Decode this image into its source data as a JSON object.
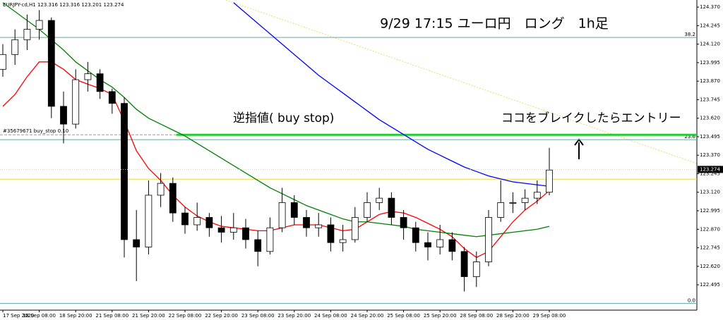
{
  "chart_data": {
    "type": "candlestick",
    "header": "EURJPY-cd,H1 123.316 123.316 123.201 123.274",
    "title": "9/29 17:15 ユーロ円　ロング　1h足",
    "annotations": [
      "逆指値( buy stop)",
      "ココをブレイクしたらエントリー"
    ],
    "categories": [
      "17 Sep 2020",
      null,
      null,
      "18 Sep 08:00",
      null,
      null,
      "18 Sep 20:00",
      null,
      null,
      "21 Sep 08:00",
      null,
      null,
      "21 Sep 20:00",
      null,
      null,
      "22 Sep 08:00",
      null,
      null,
      "22 Sep 20:00",
      null,
      null,
      "23 Sep 08:00",
      null,
      null,
      "23 Sep 20:00",
      null,
      null,
      "24 Sep 08:00",
      null,
      null,
      "24 Sep 20:00",
      null,
      null,
      "25 Sep 08:00",
      null,
      null,
      "25 Sep 20:00",
      null,
      null,
      "28 Sep 08:00",
      null,
      null,
      "28 Sep 20:00",
      null,
      null,
      "29 Sep 08:00"
    ],
    "open": [
      123.95,
      124.05,
      124.15,
      124.22,
      124.28,
      123.7,
      123.58,
      123.88,
      123.92,
      123.8,
      123.72,
      122.8,
      122.75,
      123.1,
      123.18,
      122.98,
      122.9,
      122.95,
      122.88,
      122.85,
      122.88,
      122.8,
      122.72,
      122.88,
      123.05,
      122.95,
      122.88,
      122.9,
      122.78,
      122.8,
      122.95,
      123.05,
      123.08,
      122.95,
      122.88,
      122.78,
      122.75,
      122.8,
      122.72,
      122.55,
      122.65,
      122.95,
      123.05,
      123.05,
      123.08,
      123.12
    ],
    "high": [
      124.12,
      124.22,
      124.32,
      124.35,
      124.3,
      123.8,
      123.95,
      124.0,
      123.95,
      123.82,
      123.76,
      123.0,
      123.2,
      123.25,
      123.22,
      123.02,
      123.05,
      122.98,
      122.96,
      122.98,
      122.94,
      122.86,
      122.95,
      123.15,
      123.1,
      123.0,
      122.98,
      122.95,
      122.9,
      123.02,
      123.12,
      123.15,
      123.12,
      123.0,
      122.92,
      122.85,
      122.9,
      122.85,
      122.75,
      122.72,
      123.0,
      123.2,
      123.12,
      123.14,
      123.2,
      123.42
    ],
    "low": [
      123.9,
      123.98,
      124.08,
      124.15,
      123.62,
      123.45,
      123.55,
      123.8,
      123.75,
      123.65,
      122.68,
      122.52,
      122.7,
      123.02,
      122.92,
      122.84,
      122.86,
      122.82,
      122.78,
      122.8,
      122.74,
      122.62,
      122.7,
      122.85,
      122.9,
      122.82,
      122.82,
      122.72,
      122.72,
      122.78,
      122.92,
      123.0,
      122.9,
      122.8,
      122.72,
      122.66,
      122.7,
      122.66,
      122.45,
      122.48,
      122.62,
      122.92,
      122.98,
      123.0,
      123.04,
      123.1
    ],
    "close": [
      124.05,
      124.15,
      124.22,
      124.28,
      123.7,
      123.58,
      123.88,
      123.92,
      123.8,
      123.72,
      122.8,
      122.75,
      123.1,
      123.18,
      122.98,
      122.9,
      122.95,
      122.88,
      122.85,
      122.88,
      122.8,
      122.72,
      122.88,
      123.05,
      122.95,
      122.88,
      122.9,
      122.78,
      122.8,
      122.95,
      123.05,
      123.08,
      122.95,
      122.88,
      122.78,
      122.75,
      122.8,
      122.72,
      122.55,
      122.65,
      122.95,
      123.05,
      123.05,
      123.08,
      123.12,
      123.27
    ],
    "series": [
      {
        "color": "#ff0000",
        "values": [
          123.7,
          123.78,
          123.9,
          124.0,
          124.0,
          123.95,
          123.88,
          123.85,
          123.82,
          123.78,
          123.6,
          123.4,
          123.28,
          123.2,
          123.1,
          123.02,
          122.96,
          122.92,
          122.89,
          122.88,
          122.87,
          122.86,
          122.86,
          122.88,
          122.9,
          122.9,
          122.9,
          122.88,
          122.86,
          122.87,
          122.92,
          122.97,
          122.99,
          122.98,
          122.95,
          122.91,
          122.87,
          122.82,
          122.74,
          122.68,
          122.72,
          122.82,
          122.92,
          123.0,
          123.06,
          123.13
        ]
      },
      {
        "color": "#008000",
        "values": [
          124.4,
          124.34,
          124.28,
          124.22,
          124.15,
          124.08,
          124.0,
          123.94,
          123.88,
          123.83,
          123.76,
          123.68,
          123.62,
          123.58,
          123.54,
          123.5,
          123.45,
          123.4,
          123.35,
          123.3,
          123.25,
          123.2,
          123.15,
          123.11,
          123.07,
          123.03,
          123.0,
          122.97,
          122.94,
          122.92,
          122.92,
          122.91,
          122.9,
          122.89,
          122.87,
          122.86,
          122.85,
          122.84,
          122.83,
          122.82,
          122.83,
          122.84,
          122.85,
          122.86,
          122.87,
          122.89
        ]
      },
      {
        "color": "#0000ff",
        "values": [
          null,
          null,
          null,
          null,
          null,
          null,
          null,
          null,
          null,
          null,
          null,
          null,
          null,
          null,
          null,
          null,
          null,
          null,
          null,
          124.4,
          124.33,
          124.26,
          124.19,
          124.12,
          124.05,
          123.98,
          123.91,
          123.85,
          123.79,
          123.73,
          123.67,
          123.61,
          123.56,
          123.51,
          123.46,
          123.41,
          123.37,
          123.33,
          123.29,
          123.26,
          123.23,
          123.21,
          123.19,
          123.18,
          123.17,
          123.16
        ]
      }
    ],
    "ylim": [
      122.324,
      124.418
    ],
    "yticks": [
      {
        "value": 124.37,
        "label": "124.370"
      },
      {
        "value": 124.245,
        "label": "124.245"
      },
      {
        "value": 124.12,
        "label": "124.120"
      },
      {
        "value": 123.995,
        "label": "123.995"
      },
      {
        "value": 123.87,
        "label": "123.870"
      },
      {
        "value": 123.745,
        "label": "123.745"
      },
      {
        "value": 123.62,
        "label": "123.620"
      },
      {
        "value": 123.495,
        "label": "123.495"
      },
      {
        "value": 123.37,
        "label": "123.370"
      },
      {
        "value": 123.245,
        "label": "123.245"
      },
      {
        "value": 123.12,
        "label": "123.120"
      },
      {
        "value": 122.995,
        "label": "122.995"
      },
      {
        "value": 122.87,
        "label": "122.870"
      },
      {
        "value": 122.745,
        "label": "122.745"
      },
      {
        "value": 122.62,
        "label": "122.620"
      },
      {
        "value": 122.495,
        "label": "122.495"
      }
    ],
    "order_line": {
      "value": 123.508,
      "label": "#35679671 buy_stop 0.10",
      "color": "#22cc33"
    },
    "fib_levels": [
      {
        "value": 124.165,
        "label": "38.2"
      },
      {
        "value": 123.475,
        "label": "23.6"
      },
      {
        "value": 122.37,
        "label": "0.0"
      }
    ],
    "fib_color": "#5fa8a8",
    "hline": 123.208,
    "hline_color": "#e6d84a",
    "last_price": 123.274
  }
}
